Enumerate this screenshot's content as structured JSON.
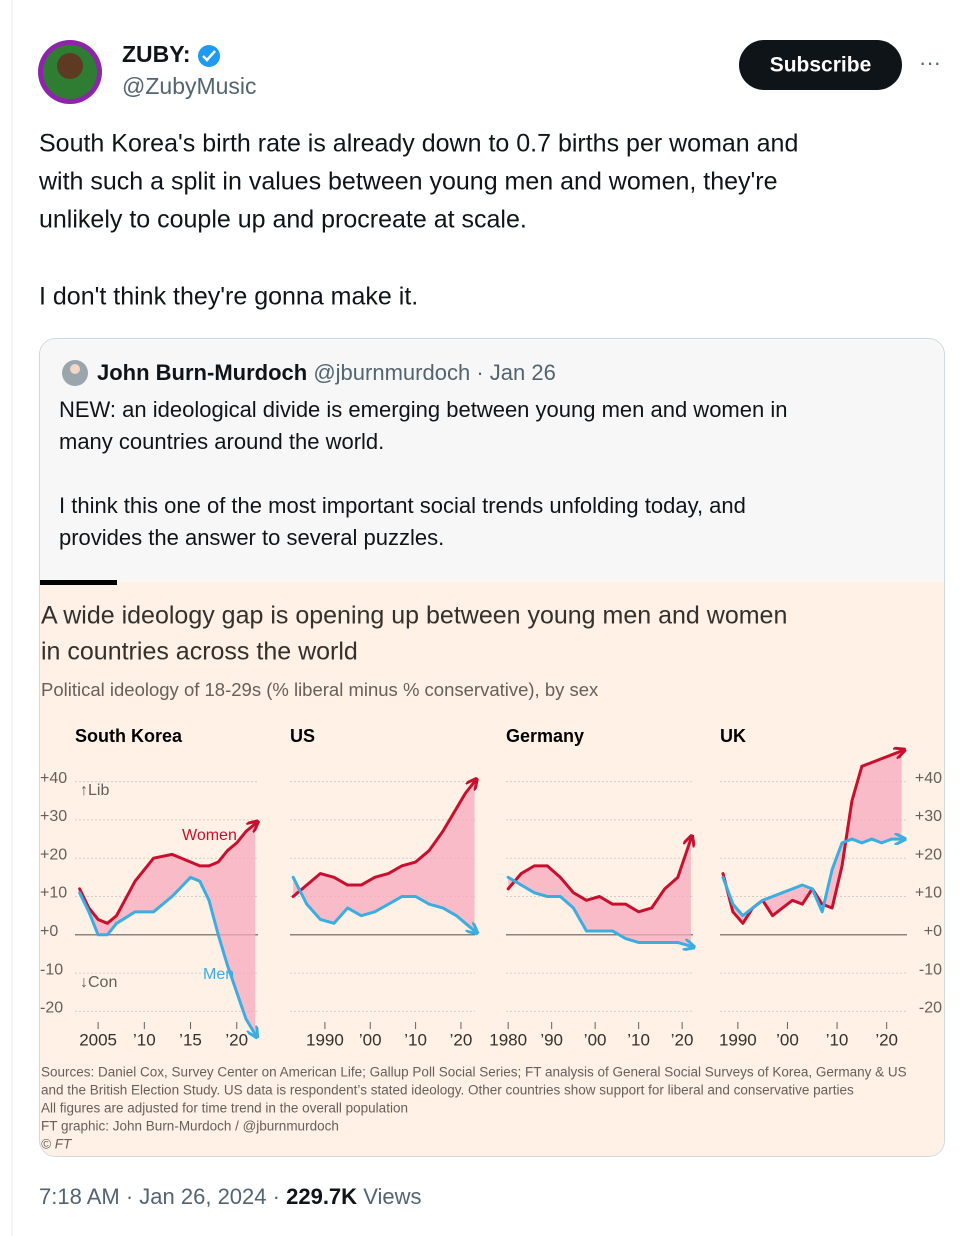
{
  "author": {
    "name": "ZUBY:",
    "handle": "@ZubyMusic"
  },
  "subscribe": "Subscribe",
  "more": "···",
  "text": [
    [
      "South Korea's birth rate is already down to 0.7 births per woman and",
      "with such a split in values between young men and women, they're",
      "unlikely to couple up and procreate at scale."
    ],
    [
      "I don't think they're gonna make it."
    ]
  ],
  "separator": "·",
  "quote": {
    "name": "John Burn-Murdoch",
    "handle": "@jburnmurdoch",
    "date": "Jan 26",
    "text": [
      [
        "NEW: an ideological divide is emerging between young men and women in",
        "many countries around the world."
      ],
      [
        "I think this one of the most important social trends unfolding today, and",
        "provides the answer to several puzzles."
      ]
    ],
    "graphic": {
      "title": [
        "A wide ideology gap is opening up between young men and women",
        "in countries across the world"
      ],
      "subtitle": "Political ideology of 18-29s (% liberal minus % conservative), by sex",
      "sources": [
        "Sources: Daniel Cox, Survey Center on American Life; Gallup Poll Social Series; FT analysis of General Social Surveys of Korea, Germany & US",
        "and the British Election Study. US data is respondent’s stated ideology. Other countries show support for liberal and conservative parties",
        "All figures are adjusted for time trend in the overall population",
        "FT graphic: John Burn-Murdoch / @jburnmurdoch",
        "© FT"
      ]
    }
  },
  "footer": {
    "time": "7:18 AM",
    "date": "Jan 26, 2024",
    "views": "229.7K",
    "views_label": "Views"
  },
  "chart_data": [
    {
      "type": "line",
      "title": "South Korea",
      "annotations": [
        "↑Lib",
        "↓Con"
      ],
      "x": [
        2003,
        2004,
        2005,
        2006,
        2007,
        2009,
        2011,
        2013,
        2015,
        2016,
        2017,
        2018,
        2019,
        2020,
        2021,
        2022
      ],
      "series": [
        {
          "name": "Women",
          "color": "#c8102e",
          "values": [
            12,
            7,
            4,
            3,
            5,
            14,
            20,
            21,
            19,
            18,
            18,
            19,
            22,
            24,
            27,
            29
          ]
        },
        {
          "name": "Men",
          "color": "#3aaee0",
          "values": [
            11,
            6,
            0,
            0,
            3,
            6,
            6,
            10,
            15,
            14,
            9,
            0,
            -8,
            -15,
            -22,
            -26
          ]
        }
      ],
      "xlim": [
        2002.5,
        2022.3
      ],
      "xticks": [
        2005,
        {
          "value": 2010,
          "label": "’10"
        },
        {
          "value": 2015,
          "label": "’15"
        },
        {
          "value": 2020,
          "label": "’20"
        }
      ],
      "ylim": [
        -28,
        48
      ],
      "yticks": [
        {
          "value": 40,
          "label": "+40"
        },
        {
          "value": 30,
          "label": "+30"
        },
        {
          "value": 20,
          "label": "+20"
        },
        {
          "value": 10,
          "label": "+10"
        },
        {
          "value": 0,
          "label": "+0"
        },
        {
          "value": -10,
          "label": "-10"
        },
        {
          "value": -20,
          "label": "-20"
        }
      ]
    },
    {
      "type": "line",
      "title": "US",
      "x": [
        1983,
        1986,
        1989,
        1992,
        1995,
        1998,
        2001,
        2004,
        2007,
        2010,
        2013,
        2016,
        2019,
        2021,
        2023
      ],
      "series": [
        {
          "color": "#c8102e",
          "values": [
            10,
            13,
            16,
            15,
            13,
            13,
            15,
            16,
            18,
            19,
            22,
            27,
            33,
            37,
            40
          ]
        },
        {
          "color": "#3aaee0",
          "values": [
            15,
            8,
            4,
            3,
            7,
            5,
            6,
            8,
            10,
            10,
            8,
            7,
            5,
            3,
            1
          ]
        }
      ],
      "xlim": [
        1982.3,
        2023.1
      ],
      "xticks": [
        1990,
        {
          "value": 2000,
          "label": "’00"
        },
        {
          "value": 2010,
          "label": "’10"
        },
        {
          "value": 2020,
          "label": "’20"
        }
      ],
      "ylim": [
        -28,
        48
      ],
      "yticks": [
        40,
        30,
        20,
        10,
        0,
        -10,
        -20
      ]
    },
    {
      "type": "line",
      "title": "Germany",
      "x": [
        1980,
        1983,
        1986,
        1989,
        1992,
        1995,
        1998,
        2001,
        2004,
        2007,
        2010,
        2013,
        2016,
        2019,
        2022
      ],
      "series": [
        {
          "color": "#c8102e",
          "values": [
            12,
            16,
            18,
            18,
            15,
            11,
            9,
            10,
            8,
            8,
            6,
            7,
            12,
            15,
            25
          ]
        },
        {
          "color": "#3aaee0",
          "values": [
            15,
            13,
            11,
            10,
            10,
            7,
            1,
            1,
            1,
            -1,
            -2,
            -2,
            -2,
            -2,
            -3
          ]
        }
      ],
      "xlim": [
        1979.5,
        2022.5
      ],
      "xticks": [
        1980,
        {
          "value": 1990,
          "label": "’90"
        },
        {
          "value": 2000,
          "label": "’00"
        },
        {
          "value": 2010,
          "label": "’10"
        },
        {
          "value": 2020,
          "label": "’20"
        }
      ],
      "ylim": [
        -28,
        48
      ],
      "yticks": [
        40,
        30,
        20,
        10,
        0,
        -10,
        -20
      ]
    },
    {
      "type": "line",
      "title": "UK",
      "x": [
        1987,
        1989,
        1991,
        1993,
        1995,
        1997,
        1999,
        2001,
        2003,
        2005,
        2007,
        2009,
        2011,
        2013,
        2015,
        2017,
        2019,
        2021,
        2023
      ],
      "series": [
        {
          "color": "#c8102e",
          "values": [
            16,
            6,
            3,
            7,
            9,
            5,
            7,
            9,
            8,
            12,
            8,
            7,
            18,
            35,
            44,
            45,
            46,
            47,
            48
          ]
        },
        {
          "color": "#3aaee0",
          "values": [
            15,
            8,
            5,
            7,
            9,
            10,
            11,
            12,
            13,
            12,
            6,
            17,
            24,
            25,
            24,
            25,
            24,
            25,
            25
          ]
        }
      ],
      "xlim": [
        1986.4,
        2024.1
      ],
      "xticks": [
        1990,
        {
          "value": 2000,
          "label": "’00"
        },
        {
          "value": 2010,
          "label": "’10"
        },
        {
          "value": 2020,
          "label": "’20"
        }
      ],
      "ylim": [
        -28,
        48
      ],
      "yticks": [
        {
          "value": 40,
          "label": "+40"
        },
        {
          "value": 30,
          "label": "+30"
        },
        {
          "value": 20,
          "label": "+20"
        },
        {
          "value": 10,
          "label": "+10"
        },
        {
          "value": 0,
          "label": "+0"
        },
        {
          "value": -10,
          "label": "-10"
        },
        {
          "value": -20,
          "label": "-20"
        }
      ]
    }
  ]
}
